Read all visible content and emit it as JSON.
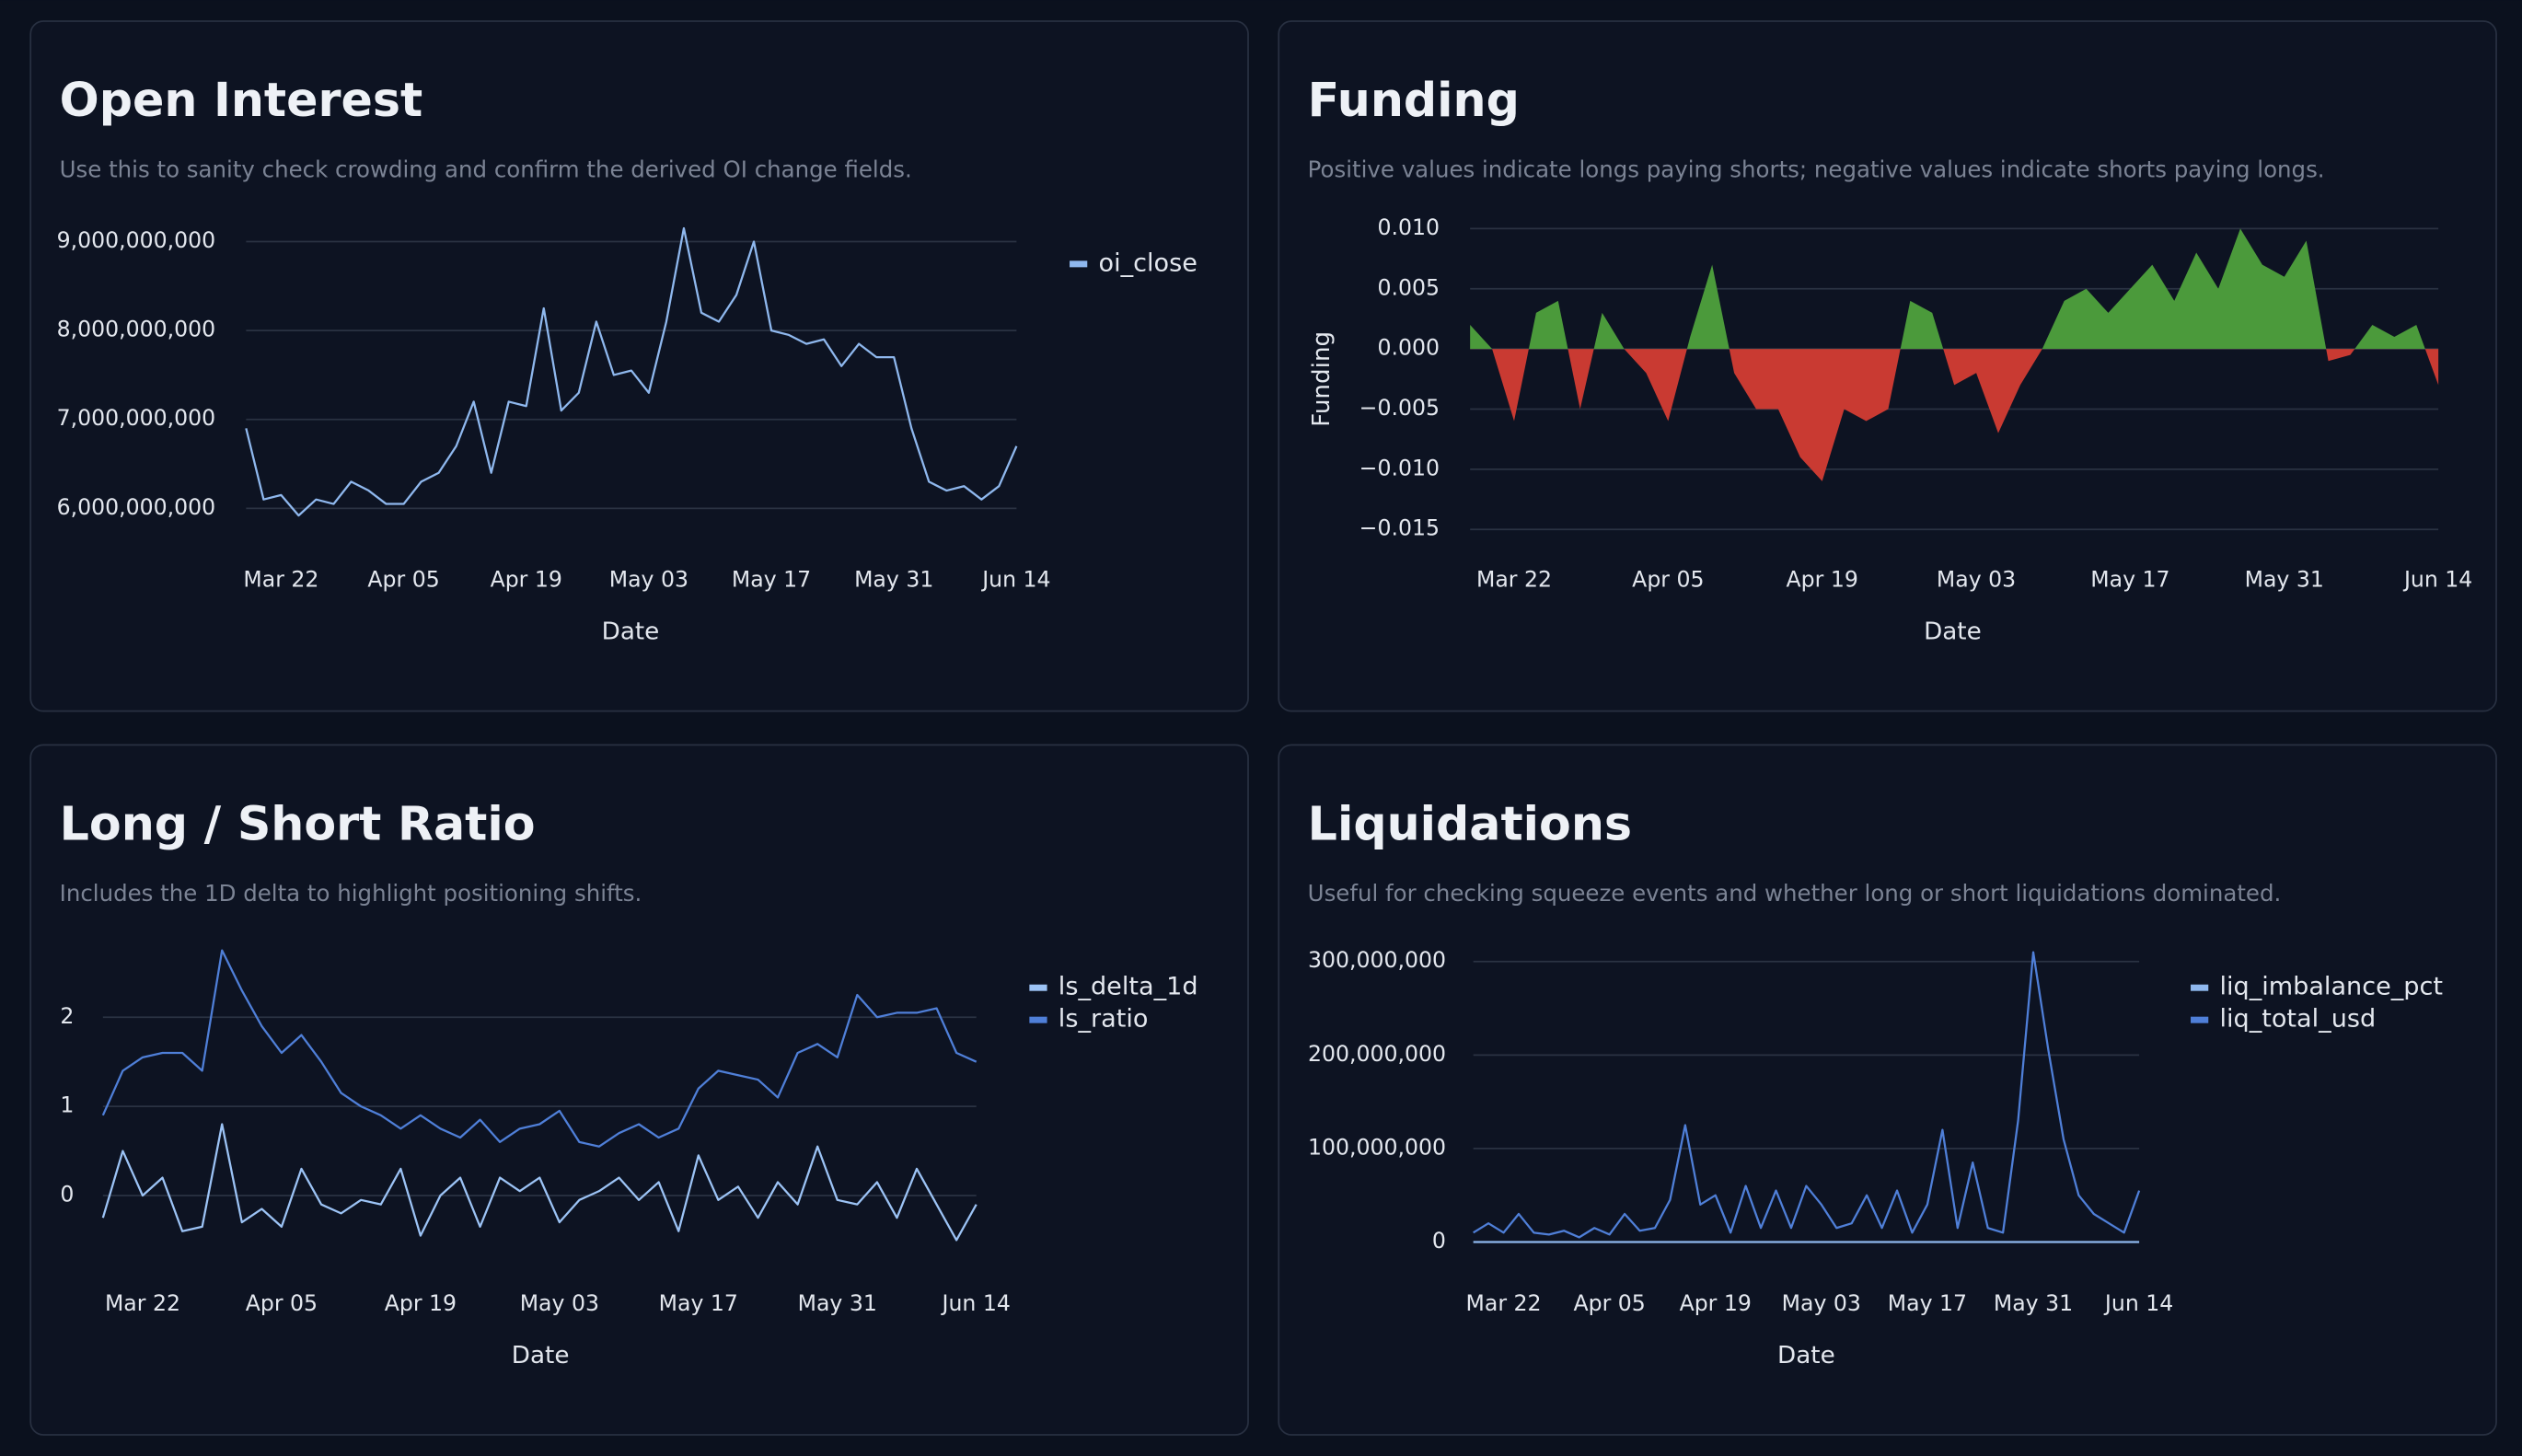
{
  "chart_data": [
    {
      "type": "line",
      "title": "Open Interest",
      "subtitle": "Use this to sanity check crowding and confirm the derived OI change fields.",
      "x": [
        "Mar 18",
        "Mar 20",
        "Mar 22",
        "Mar 24",
        "Mar 26",
        "Mar 28",
        "Mar 30",
        "Apr 01",
        "Apr 03",
        "Apr 05",
        "Apr 07",
        "Apr 09",
        "Apr 11",
        "Apr 13",
        "Apr 15",
        "Apr 17",
        "Apr 19",
        "Apr 21",
        "Apr 23",
        "Apr 25",
        "Apr 27",
        "Apr 29",
        "May 01",
        "May 03",
        "May 05",
        "May 07",
        "May 09",
        "May 11",
        "May 13",
        "May 15",
        "May 17",
        "May 19",
        "May 21",
        "May 23",
        "May 25",
        "May 27",
        "May 29",
        "May 31",
        "Jun 02",
        "Jun 04",
        "Jun 06",
        "Jun 08",
        "Jun 10",
        "Jun 12",
        "Jun 14"
      ],
      "xticks": [
        "Mar 22",
        "Apr 05",
        "Apr 19",
        "May 03",
        "May 17",
        "May 31",
        "Jun 14"
      ],
      "xlabel": "Date",
      "ylim": [
        5800000000,
        9200000000
      ],
      "yticks": [
        {
          "value": 6000000000,
          "label": "6,000,000,000"
        },
        {
          "value": 7000000000,
          "label": "7,000,000,000"
        },
        {
          "value": 8000000000,
          "label": "8,000,000,000"
        },
        {
          "value": 9000000000,
          "label": "9,000,000,000"
        }
      ],
      "grid": true,
      "legend": "right",
      "series": [
        {
          "name": "oi_close",
          "color": "#8fb8ee",
          "values": [
            6900000000,
            6100000000,
            6150000000,
            5920000000,
            6100000000,
            6050000000,
            6300000000,
            6200000000,
            6050000000,
            6050000000,
            6300000000,
            6400000000,
            6700000000,
            7200000000,
            6400000000,
            7200000000,
            7150000000,
            8250000000,
            7100000000,
            7300000000,
            8100000000,
            7500000000,
            7550000000,
            7300000000,
            8100000000,
            9150000000,
            8200000000,
            8100000000,
            8400000000,
            9000000000,
            8000000000,
            7950000000,
            7850000000,
            7900000000,
            7600000000,
            7850000000,
            7700000000,
            7700000000,
            6900000000,
            6300000000,
            6200000000,
            6250000000,
            6100000000,
            6250000000,
            6700000000
          ]
        }
      ]
    },
    {
      "type": "area",
      "title": "Funding",
      "subtitle": "Positive values indicate longs paying shorts; negative values indicate shorts paying longs.",
      "x": [
        "Mar 18",
        "Mar 20",
        "Mar 22",
        "Mar 24",
        "Mar 26",
        "Mar 28",
        "Mar 30",
        "Apr 01",
        "Apr 03",
        "Apr 05",
        "Apr 07",
        "Apr 09",
        "Apr 11",
        "Apr 13",
        "Apr 15",
        "Apr 17",
        "Apr 19",
        "Apr 21",
        "Apr 23",
        "Apr 25",
        "Apr 27",
        "Apr 29",
        "May 01",
        "May 03",
        "May 05",
        "May 07",
        "May 09",
        "May 11",
        "May 13",
        "May 15",
        "May 17",
        "May 19",
        "May 21",
        "May 23",
        "May 25",
        "May 27",
        "May 29",
        "May 31",
        "Jun 02",
        "Jun 04",
        "Jun 06",
        "Jun 08",
        "Jun 10",
        "Jun 12",
        "Jun 14"
      ],
      "xticks": [
        "Mar 22",
        "Apr 05",
        "Apr 19",
        "May 03",
        "May 17",
        "May 31",
        "Jun 14"
      ],
      "xlabel": "Date",
      "ylabel": "Funding",
      "ylim": [
        -0.015,
        0.01
      ],
      "yticks": [
        {
          "value": -0.015,
          "label": "−0.015"
        },
        {
          "value": -0.01,
          "label": "−0.010"
        },
        {
          "value": -0.005,
          "label": "−0.005"
        },
        {
          "value": 0,
          "label": "0.000"
        },
        {
          "value": 0.005,
          "label": "0.005"
        },
        {
          "value": 0.01,
          "label": "0.010"
        }
      ],
      "grid": true,
      "positive_color": "#4b9a3b",
      "negative_color": "#c93a32",
      "values": [
        0.002,
        0.0,
        -0.006,
        0.003,
        0.004,
        -0.005,
        0.003,
        0.0,
        -0.002,
        -0.006,
        0.001,
        0.007,
        -0.002,
        -0.005,
        -0.005,
        -0.009,
        -0.011,
        -0.005,
        -0.006,
        -0.005,
        0.004,
        0.003,
        -0.003,
        -0.002,
        -0.007,
        -0.003,
        0.0,
        0.004,
        0.005,
        0.003,
        0.005,
        0.007,
        0.004,
        0.008,
        0.005,
        0.01,
        0.007,
        0.006,
        0.009,
        -0.001,
        -0.0005,
        0.002,
        0.001,
        0.002,
        -0.003
      ]
    },
    {
      "type": "line",
      "title": "Long / Short Ratio",
      "subtitle": "Includes the 1D delta to highlight positioning shifts.",
      "x": [
        "Mar 18",
        "Mar 20",
        "Mar 22",
        "Mar 24",
        "Mar 26",
        "Mar 28",
        "Mar 30",
        "Apr 01",
        "Apr 03",
        "Apr 05",
        "Apr 07",
        "Apr 09",
        "Apr 11",
        "Apr 13",
        "Apr 15",
        "Apr 17",
        "Apr 19",
        "Apr 21",
        "Apr 23",
        "Apr 25",
        "Apr 27",
        "Apr 29",
        "May 01",
        "May 03",
        "May 05",
        "May 07",
        "May 09",
        "May 11",
        "May 13",
        "May 15",
        "May 17",
        "May 19",
        "May 21",
        "May 23",
        "May 25",
        "May 27",
        "May 29",
        "May 31",
        "Jun 02",
        "Jun 04",
        "Jun 06",
        "Jun 08",
        "Jun 10",
        "Jun 12",
        "Jun 14"
      ],
      "xticks": [
        "Mar 22",
        "Apr 05",
        "Apr 19",
        "May 03",
        "May 17",
        "May 31",
        "Jun 14"
      ],
      "xlabel": "Date",
      "ylim": [
        -0.7,
        2.8
      ],
      "yticks": [
        0,
        1,
        2
      ],
      "grid": true,
      "legend": "right",
      "series": [
        {
          "name": "ls_delta_1d",
          "color": "#9cc3f5",
          "values": [
            -0.25,
            0.5,
            0.0,
            0.2,
            -0.4,
            -0.35,
            0.8,
            -0.3,
            -0.15,
            -0.35,
            0.3,
            -0.1,
            -0.2,
            -0.05,
            -0.1,
            0.3,
            -0.45,
            0.0,
            0.2,
            -0.35,
            0.2,
            0.05,
            0.2,
            -0.3,
            -0.05,
            0.05,
            0.2,
            -0.05,
            0.15,
            -0.4,
            0.45,
            -0.05,
            0.1,
            -0.25,
            0.15,
            -0.1,
            0.55,
            -0.05,
            -0.1,
            0.15,
            -0.25,
            0.3,
            -0.1,
            -0.5,
            -0.1
          ]
        },
        {
          "name": "ls_ratio",
          "color": "#4f7fd8",
          "values": [
            0.9,
            1.4,
            1.55,
            1.6,
            1.6,
            1.4,
            2.75,
            2.3,
            1.9,
            1.6,
            1.8,
            1.5,
            1.15,
            1.0,
            0.9,
            0.75,
            0.9,
            0.75,
            0.65,
            0.85,
            0.6,
            0.75,
            0.8,
            0.95,
            0.6,
            0.55,
            0.7,
            0.8,
            0.65,
            0.75,
            1.2,
            1.4,
            1.35,
            1.3,
            1.1,
            1.6,
            1.7,
            1.55,
            2.25,
            2.0,
            2.05,
            2.05,
            2.1,
            1.6,
            1.5
          ]
        }
      ]
    },
    {
      "type": "line",
      "title": "Liquidations",
      "subtitle": "Useful for checking squeeze events and whether long or short liquidations dominated.",
      "x": [
        "Mar 18",
        "Mar 20",
        "Mar 22",
        "Mar 24",
        "Mar 26",
        "Mar 28",
        "Mar 30",
        "Apr 01",
        "Apr 03",
        "Apr 05",
        "Apr 07",
        "Apr 09",
        "Apr 11",
        "Apr 13",
        "Apr 15",
        "Apr 17",
        "Apr 19",
        "Apr 21",
        "Apr 23",
        "Apr 25",
        "Apr 27",
        "Apr 29",
        "May 01",
        "May 03",
        "May 05",
        "May 07",
        "May 09",
        "May 11",
        "May 13",
        "May 15",
        "May 17",
        "May 19",
        "May 21",
        "May 23",
        "May 25",
        "May 27",
        "May 29",
        "May 31",
        "Jun 02",
        "Jun 04",
        "Jun 06",
        "Jun 08",
        "Jun 10",
        "Jun 12",
        "Jun 14"
      ],
      "xticks": [
        "Mar 22",
        "Apr 05",
        "Apr 19",
        "May 03",
        "May 17",
        "May 31",
        "Jun 14"
      ],
      "xlabel": "Date",
      "ylim": [
        -5000000,
        315000000
      ],
      "yticks": [
        0,
        {
          "value": 100000000,
          "label": "100,000,000"
        },
        {
          "value": 200000000,
          "label": "200,000,000"
        },
        {
          "value": 300000000,
          "label": "300,000,000"
        }
      ],
      "grid": true,
      "legend": "right",
      "series": [
        {
          "name": "liq_imbalance_pct",
          "color": "#8fb8ee",
          "values": [
            12,
            -20,
            35,
            -8,
            15,
            -40,
            22,
            5,
            -15,
            30,
            -25,
            10,
            -5,
            45,
            -60,
            20,
            -10,
            35,
            -30,
            8,
            -18,
            25,
            -12,
            40,
            -35,
            15,
            -5,
            28,
            -22,
            10,
            -45,
            18,
            -8,
            32,
            -15,
            55,
            -70,
            20,
            -10,
            25,
            -30,
            12,
            -6,
            18,
            -20
          ]
        },
        {
          "name": "liq_total_usd",
          "color": "#4f7fd8",
          "values": [
            10000000,
            20000000,
            10000000,
            30000000,
            10000000,
            8000000,
            12000000,
            5000000,
            15000000,
            8000000,
            30000000,
            12000000,
            15000000,
            45000000,
            125000000,
            40000000,
            50000000,
            10000000,
            60000000,
            15000000,
            55000000,
            15000000,
            60000000,
            40000000,
            15000000,
            20000000,
            50000000,
            15000000,
            55000000,
            10000000,
            40000000,
            120000000,
            15000000,
            85000000,
            15000000,
            10000000,
            130000000,
            310000000,
            205000000,
            110000000,
            50000000,
            30000000,
            20000000,
            10000000,
            55000000
          ]
        }
      ]
    }
  ]
}
